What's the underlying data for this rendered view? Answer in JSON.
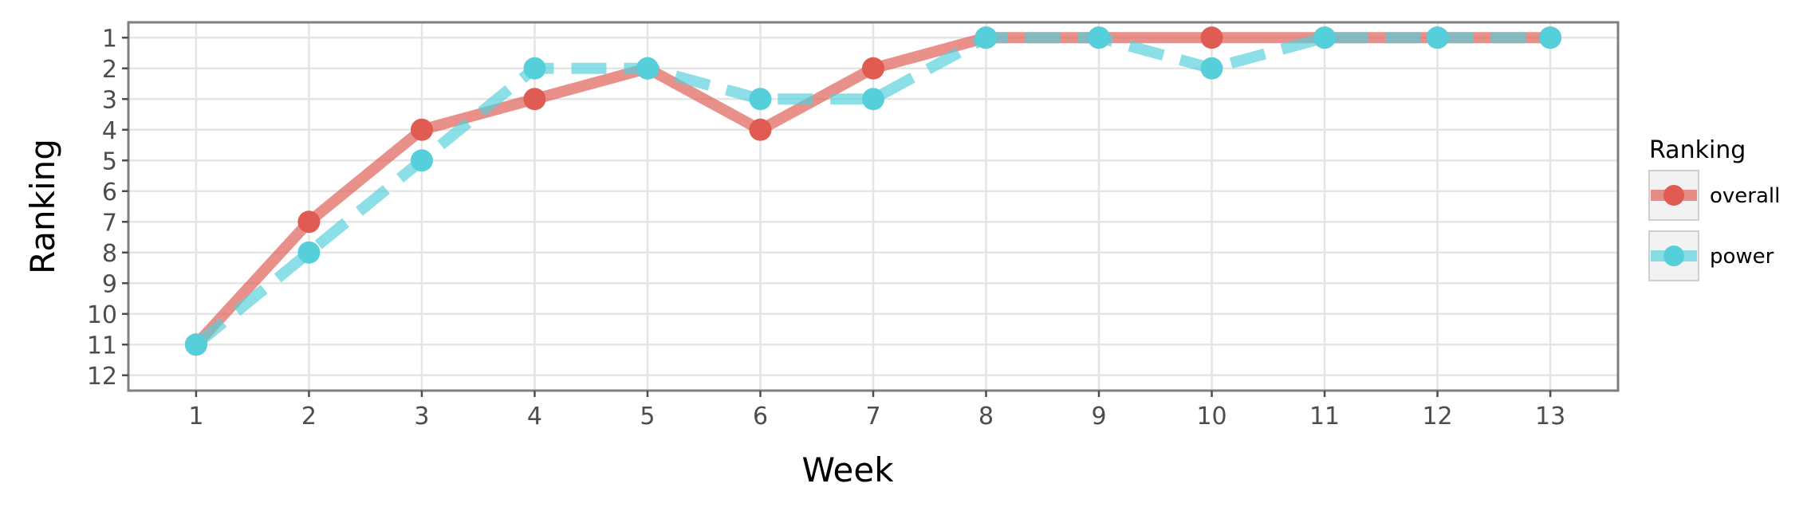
{
  "chart_data": {
    "type": "line",
    "title": "",
    "xlabel": "Week",
    "ylabel": "Ranking",
    "x": [
      1,
      2,
      3,
      4,
      5,
      6,
      7,
      8,
      9,
      10,
      11,
      12,
      13
    ],
    "x_ticks": [
      "1",
      "2",
      "3",
      "4",
      "5",
      "6",
      "7",
      "8",
      "9",
      "10",
      "11",
      "12",
      "13"
    ],
    "y_ticks": [
      "1",
      "2",
      "3",
      "4",
      "5",
      "6",
      "7",
      "8",
      "9",
      "10",
      "11",
      "12"
    ],
    "xlim": [
      0.4,
      13.6
    ],
    "ylim": [
      12.5,
      0.5
    ],
    "y_reversed": true,
    "grid": true,
    "legend": {
      "title": "Ranking",
      "placement": "right"
    },
    "series": [
      {
        "name": "overall",
        "color": "#e05b52",
        "line_style": "solid",
        "values": [
          11,
          7,
          4,
          3,
          2,
          4,
          2,
          1,
          1,
          1,
          1,
          1,
          1
        ]
      },
      {
        "name": "power",
        "color": "#55d0da",
        "line_style": "dashed",
        "values": [
          11,
          8,
          5,
          2,
          2,
          3,
          3,
          1,
          1,
          2,
          1,
          1,
          1
        ]
      }
    ]
  }
}
